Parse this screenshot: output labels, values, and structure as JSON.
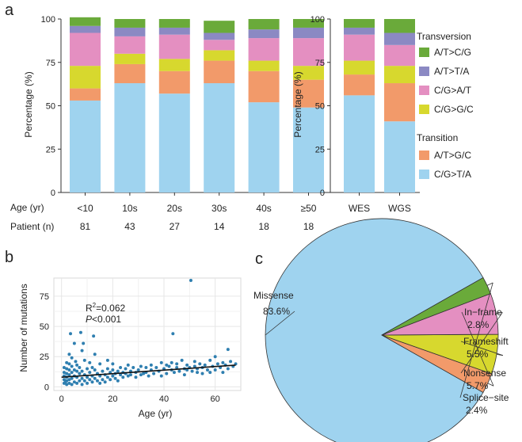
{
  "panels": {
    "a": "a",
    "b": "b",
    "c": "c"
  },
  "legend": {
    "transversion_title": "Transversion",
    "transition_title": "Transition",
    "items": [
      {
        "key": "AT_CG",
        "label": "A/T>C/G",
        "color": "#6aaa3a"
      },
      {
        "key": "AT_TA",
        "label": "A/T>T/A",
        "color": "#8b89c3"
      },
      {
        "key": "CG_AT",
        "label": "C/G>A/T",
        "color": "#e48fc1"
      },
      {
        "key": "CG_GC",
        "label": "C/G>G/C",
        "color": "#d7d82e"
      },
      {
        "key": "AT_GC",
        "label": "A/T>G/C",
        "color": "#f29a6a"
      },
      {
        "key": "CG_TA",
        "label": "C/G>T/A",
        "color": "#9fd3ef"
      }
    ]
  },
  "chart_data": [
    {
      "id": "a-age",
      "type": "bar",
      "stacked": true,
      "ylabel": "Percentage (%)",
      "ylim": [
        0,
        100
      ],
      "yticks": [
        0,
        25,
        50,
        75,
        100
      ],
      "categories": [
        "<10",
        "10s",
        "20s",
        "30s",
        "40s",
        "≥50"
      ],
      "row_labels": {
        "age": "Age (yr)",
        "patient": "Patient (n)"
      },
      "patients": [
        "81",
        "43",
        "27",
        "14",
        "18",
        "18"
      ],
      "series": [
        {
          "key": "CG_TA",
          "values": [
            53,
            63,
            57,
            63,
            52,
            49
          ]
        },
        {
          "key": "AT_GC",
          "values": [
            7,
            11,
            13,
            13,
            18,
            16
          ]
        },
        {
          "key": "CG_GC",
          "values": [
            13,
            6,
            7,
            6,
            6,
            8
          ]
        },
        {
          "key": "CG_AT",
          "values": [
            19,
            10,
            14,
            6,
            13,
            16
          ]
        },
        {
          "key": "AT_TA",
          "values": [
            4,
            5,
            4,
            4,
            5,
            6
          ]
        },
        {
          "key": "AT_CG",
          "values": [
            5,
            5,
            5,
            7,
            6,
            5
          ]
        }
      ]
    },
    {
      "id": "a-seq",
      "type": "bar",
      "stacked": true,
      "ylabel": "Percentage (%)",
      "ylim": [
        0,
        100
      ],
      "yticks": [
        0,
        25,
        50,
        75,
        100
      ],
      "categories": [
        "WES",
        "WGS"
      ],
      "series": [
        {
          "key": "CG_TA",
          "values": [
            56,
            41
          ]
        },
        {
          "key": "AT_GC",
          "values": [
            12,
            22
          ]
        },
        {
          "key": "CG_GC",
          "values": [
            8,
            10
          ]
        },
        {
          "key": "CG_AT",
          "values": [
            15,
            12
          ]
        },
        {
          "key": "AT_TA",
          "values": [
            4,
            7
          ]
        },
        {
          "key": "AT_CG",
          "values": [
            5,
            8
          ]
        }
      ]
    },
    {
      "id": "b-scatter",
      "type": "scatter",
      "xlabel": "Age (yr)",
      "ylabel": "Number of mutations",
      "xlim": [
        -3,
        70
      ],
      "ylim": [
        -3,
        90
      ],
      "xticks": [
        0,
        20,
        40,
        60
      ],
      "yticks": [
        0,
        25,
        50,
        75
      ],
      "grid": true,
      "point_color": "#2f7fb0",
      "annotation": {
        "r2_label": "R",
        "r2_sup": "2",
        "r2_value": "=0.062",
        "p_label": "P",
        "p_value": "<0.001"
      },
      "fit": {
        "x": [
          0,
          68
        ],
        "y": [
          8,
          18
        ]
      },
      "points": [
        [
          1,
          3
        ],
        [
          1,
          6
        ],
        [
          1,
          9
        ],
        [
          1,
          12
        ],
        [
          1,
          16
        ],
        [
          1.5,
          4
        ],
        [
          2,
          2
        ],
        [
          2,
          5
        ],
        [
          2,
          8
        ],
        [
          2,
          11
        ],
        [
          2,
          15
        ],
        [
          2,
          20
        ],
        [
          3,
          3
        ],
        [
          3,
          6
        ],
        [
          3,
          10
        ],
        [
          3,
          14
        ],
        [
          3,
          19
        ],
        [
          3,
          27
        ],
        [
          3.5,
          44
        ],
        [
          4,
          2
        ],
        [
          4,
          7
        ],
        [
          4,
          12
        ],
        [
          4,
          17
        ],
        [
          4,
          24
        ],
        [
          5,
          4
        ],
        [
          5,
          9
        ],
        [
          5,
          14
        ],
        [
          5,
          36
        ],
        [
          5.5,
          21
        ],
        [
          6,
          3
        ],
        [
          6,
          8
        ],
        [
          6,
          13
        ],
        [
          6,
          18
        ],
        [
          7,
          5
        ],
        [
          7,
          11
        ],
        [
          7,
          16
        ],
        [
          7.5,
          45
        ],
        [
          8,
          2
        ],
        [
          8,
          7
        ],
        [
          8,
          30
        ],
        [
          8,
          13
        ],
        [
          8.5,
          36
        ],
        [
          9,
          5
        ],
        [
          9,
          10
        ],
        [
          9,
          22
        ],
        [
          10,
          3
        ],
        [
          10,
          8
        ],
        [
          10,
          15
        ],
        [
          11,
          6
        ],
        [
          11,
          12
        ],
        [
          11,
          20
        ],
        [
          12,
          4
        ],
        [
          12,
          9
        ],
        [
          12,
          16
        ],
        [
          12.5,
          42
        ],
        [
          13,
          7
        ],
        [
          13,
          14
        ],
        [
          13,
          27
        ],
        [
          14,
          5
        ],
        [
          14,
          11
        ],
        [
          15,
          9
        ],
        [
          15,
          3
        ],
        [
          15,
          19
        ],
        [
          16,
          6
        ],
        [
          16,
          13
        ],
        [
          17,
          10
        ],
        [
          17,
          4
        ],
        [
          18,
          8
        ],
        [
          18,
          15
        ],
        [
          18,
          22
        ],
        [
          19,
          6
        ],
        [
          19,
          12
        ],
        [
          20,
          9
        ],
        [
          20,
          14
        ],
        [
          20,
          19
        ],
        [
          21,
          7
        ],
        [
          21,
          11
        ],
        [
          22,
          13
        ],
        [
          22,
          5
        ],
        [
          23,
          10
        ],
        [
          23,
          16
        ],
        [
          24,
          8
        ],
        [
          24,
          12
        ],
        [
          25,
          11
        ],
        [
          25,
          15
        ],
        [
          26,
          9
        ],
        [
          26,
          18
        ],
        [
          27,
          13
        ],
        [
          27,
          10
        ],
        [
          28,
          16
        ],
        [
          29,
          8
        ],
        [
          29,
          12
        ],
        [
          30,
          14
        ],
        [
          31,
          10
        ],
        [
          31,
          17
        ],
        [
          32,
          11
        ],
        [
          33,
          12
        ],
        [
          33,
          16
        ],
        [
          34,
          9
        ],
        [
          35,
          14
        ],
        [
          35,
          18
        ],
        [
          36,
          11
        ],
        [
          37,
          16
        ],
        [
          38,
          13
        ],
        [
          39,
          20
        ],
        [
          39,
          9
        ],
        [
          40,
          15
        ],
        [
          41,
          18
        ],
        [
          41,
          11
        ],
        [
          42,
          17
        ],
        [
          43,
          14
        ],
        [
          43,
          20
        ],
        [
          43.5,
          44
        ],
        [
          44,
          12
        ],
        [
          45,
          19
        ],
        [
          45,
          16
        ],
        [
          46,
          13
        ],
        [
          47,
          22
        ],
        [
          48,
          15
        ],
        [
          48,
          10
        ],
        [
          49,
          18
        ],
        [
          49,
          14
        ],
        [
          50,
          16
        ],
        [
          50.5,
          88
        ],
        [
          51,
          13
        ],
        [
          52,
          17
        ],
        [
          52,
          21
        ],
        [
          53,
          12
        ],
        [
          53,
          15
        ],
        [
          54,
          19
        ],
        [
          55,
          11
        ],
        [
          55,
          16
        ],
        [
          56,
          18
        ],
        [
          57,
          14
        ],
        [
          58,
          22
        ],
        [
          58,
          12
        ],
        [
          59,
          17
        ],
        [
          60,
          25
        ],
        [
          60,
          14
        ],
        [
          61,
          19
        ],
        [
          62,
          16
        ],
        [
          63,
          12
        ],
        [
          63,
          20
        ],
        [
          64,
          18
        ],
        [
          65,
          31
        ],
        [
          65,
          15
        ],
        [
          66,
          21
        ],
        [
          67,
          17
        ],
        [
          68,
          19
        ]
      ]
    },
    {
      "id": "c-pie",
      "type": "pie",
      "slices": [
        {
          "label": "Missense",
          "pct": "83.6%",
          "value": 83.6,
          "color": "#9fd3ef"
        },
        {
          "label": "In−frame",
          "pct": "2.8%",
          "value": 2.8,
          "color": "#f29a6a"
        },
        {
          "label": "Frameshift",
          "pct": "5.5%",
          "value": 5.5,
          "color": "#d7d82e"
        },
        {
          "label": "Nonsense",
          "pct": "5.7%",
          "value": 5.7,
          "color": "#e48fc1"
        },
        {
          "label": "Splice−site",
          "pct": "2.4%",
          "value": 2.4,
          "color": "#6aaa3a"
        }
      ]
    }
  ]
}
